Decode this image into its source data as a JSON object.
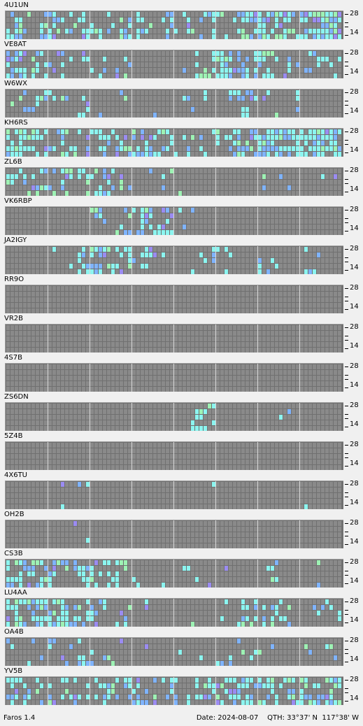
{
  "app": {
    "name": "Faros 1.4"
  },
  "status": {
    "date_text": "Date: 2024-08-07",
    "qth_text": "QTH: 33°37' N  117°38' W"
  },
  "band_labels": {
    "high": "28",
    "low": "14",
    "mid": "-"
  },
  "colors": {
    "grid_bg": "#707070",
    "cell_empty": "#8a8a8a",
    "cell_strong": "#8cf5f0",
    "cell_mid": "#7fb4ff",
    "cell_green": "#9ef2b4",
    "cell_violet": "#9b8cf2"
  },
  "stations": [
    {
      "call": "4U1UN",
      "activity": [
        0.55,
        0.45,
        0.5,
        0.35,
        0.3,
        0.3,
        0.3,
        0.35,
        0.3,
        0.3,
        0.3,
        0.75,
        0.8,
        0.85,
        0.85,
        0.85
      ]
    },
    {
      "call": "VE8AT",
      "activity": [
        0.6,
        0.5,
        0.4,
        0.3,
        0.2,
        0.15,
        0.1,
        0.05,
        0.1,
        0.4,
        0.6,
        0.7,
        0.6,
        0.3,
        0.2,
        0.2
      ]
    },
    {
      "call": "W6WX",
      "activity": [
        0.1,
        0.25,
        0.3,
        0.2,
        0.15,
        0.2,
        0.1,
        0.05,
        0.05,
        0.05,
        0.1,
        0.15,
        0.1,
        0.1,
        0.05,
        0.05
      ]
    },
    {
      "call": "KH6RS",
      "activity": [
        0.75,
        0.6,
        0.4,
        0.45,
        0.5,
        0.55,
        0.5,
        0.45,
        0.2,
        0.15,
        0.5,
        0.75,
        0.85,
        0.85,
        0.8,
        0.75
      ]
    },
    {
      "call": "ZL6B",
      "activity": [
        0.4,
        0.3,
        0.4,
        0.45,
        0.4,
        0.45,
        0.15,
        0.1,
        0.05,
        0,
        0,
        0.05,
        0.1,
        0.1,
        0.05,
        0.1
      ]
    },
    {
      "call": "VK6RBP",
      "activity": [
        0,
        0,
        0,
        0,
        0.3,
        0.45,
        0.5,
        0.4,
        0.1,
        0,
        0,
        0,
        0,
        0,
        0,
        0
      ]
    },
    {
      "call": "JA2IGY",
      "activity": [
        0,
        0,
        0.05,
        0.3,
        0.35,
        0.35,
        0.3,
        0.1,
        0.05,
        0.15,
        0.25,
        0.15,
        0.2,
        0.05,
        0.15,
        0.05
      ]
    },
    {
      "call": "RR9O",
      "activity": [
        0.02,
        0.02,
        0,
        0,
        0,
        0,
        0,
        0,
        0,
        0,
        0,
        0,
        0,
        0,
        0,
        0
      ]
    },
    {
      "call": "VR2B",
      "activity": [
        0,
        0,
        0,
        0,
        0,
        0,
        0,
        0,
        0,
        0,
        0,
        0,
        0,
        0,
        0,
        0
      ]
    },
    {
      "call": "4S7B",
      "activity": [
        0,
        0,
        0,
        0,
        0,
        0,
        0,
        0,
        0,
        0,
        0,
        0,
        0,
        0,
        0,
        0
      ]
    },
    {
      "call": "ZS6DN",
      "activity": [
        0,
        0,
        0,
        0,
        0,
        0,
        0,
        0,
        0.15,
        0.35,
        0.05,
        0,
        0,
        0.05,
        0,
        0
      ]
    },
    {
      "call": "5Z4B",
      "activity": [
        0,
        0,
        0,
        0,
        0,
        0,
        0,
        0,
        0,
        0,
        0,
        0,
        0,
        0,
        0,
        0
      ]
    },
    {
      "call": "4X6TU",
      "activity": [
        0.05,
        0.1,
        0.1,
        0.1,
        0,
        0,
        0,
        0,
        0,
        0.05,
        0,
        0,
        0,
        0,
        0.05,
        0
      ]
    },
    {
      "call": "OH2B",
      "activity": [
        0,
        0,
        0,
        0.1,
        0.05,
        0,
        0,
        0,
        0,
        0,
        0,
        0,
        0,
        0,
        0,
        0
      ]
    },
    {
      "call": "CS3B",
      "activity": [
        0.5,
        0.55,
        0.45,
        0.4,
        0.3,
        0.2,
        0.1,
        0.05,
        0.1,
        0.05,
        0.1,
        0.05,
        0.1,
        0.1,
        0.1,
        0.05
      ]
    },
    {
      "call": "LU4AA",
      "activity": [
        0.75,
        0.7,
        0.6,
        0.45,
        0.3,
        0.2,
        0.1,
        0.05,
        0.1,
        0.05,
        0.2,
        0.3,
        0.25,
        0.15,
        0.2,
        0.25
      ]
    },
    {
      "call": "OA4B",
      "activity": [
        0.05,
        0.2,
        0.3,
        0.35,
        0.25,
        0.2,
        0.15,
        0.05,
        0.05,
        0.15,
        0.25,
        0.15,
        0.15,
        0.1,
        0.15,
        0.1
      ]
    },
    {
      "call": "YV5B",
      "activity": [
        0.5,
        0.45,
        0.35,
        0.35,
        0.4,
        0.4,
        0.45,
        0.4,
        0.3,
        0.55,
        0.5,
        0.6,
        0.6,
        0.55,
        0.55,
        0.6
      ]
    }
  ]
}
